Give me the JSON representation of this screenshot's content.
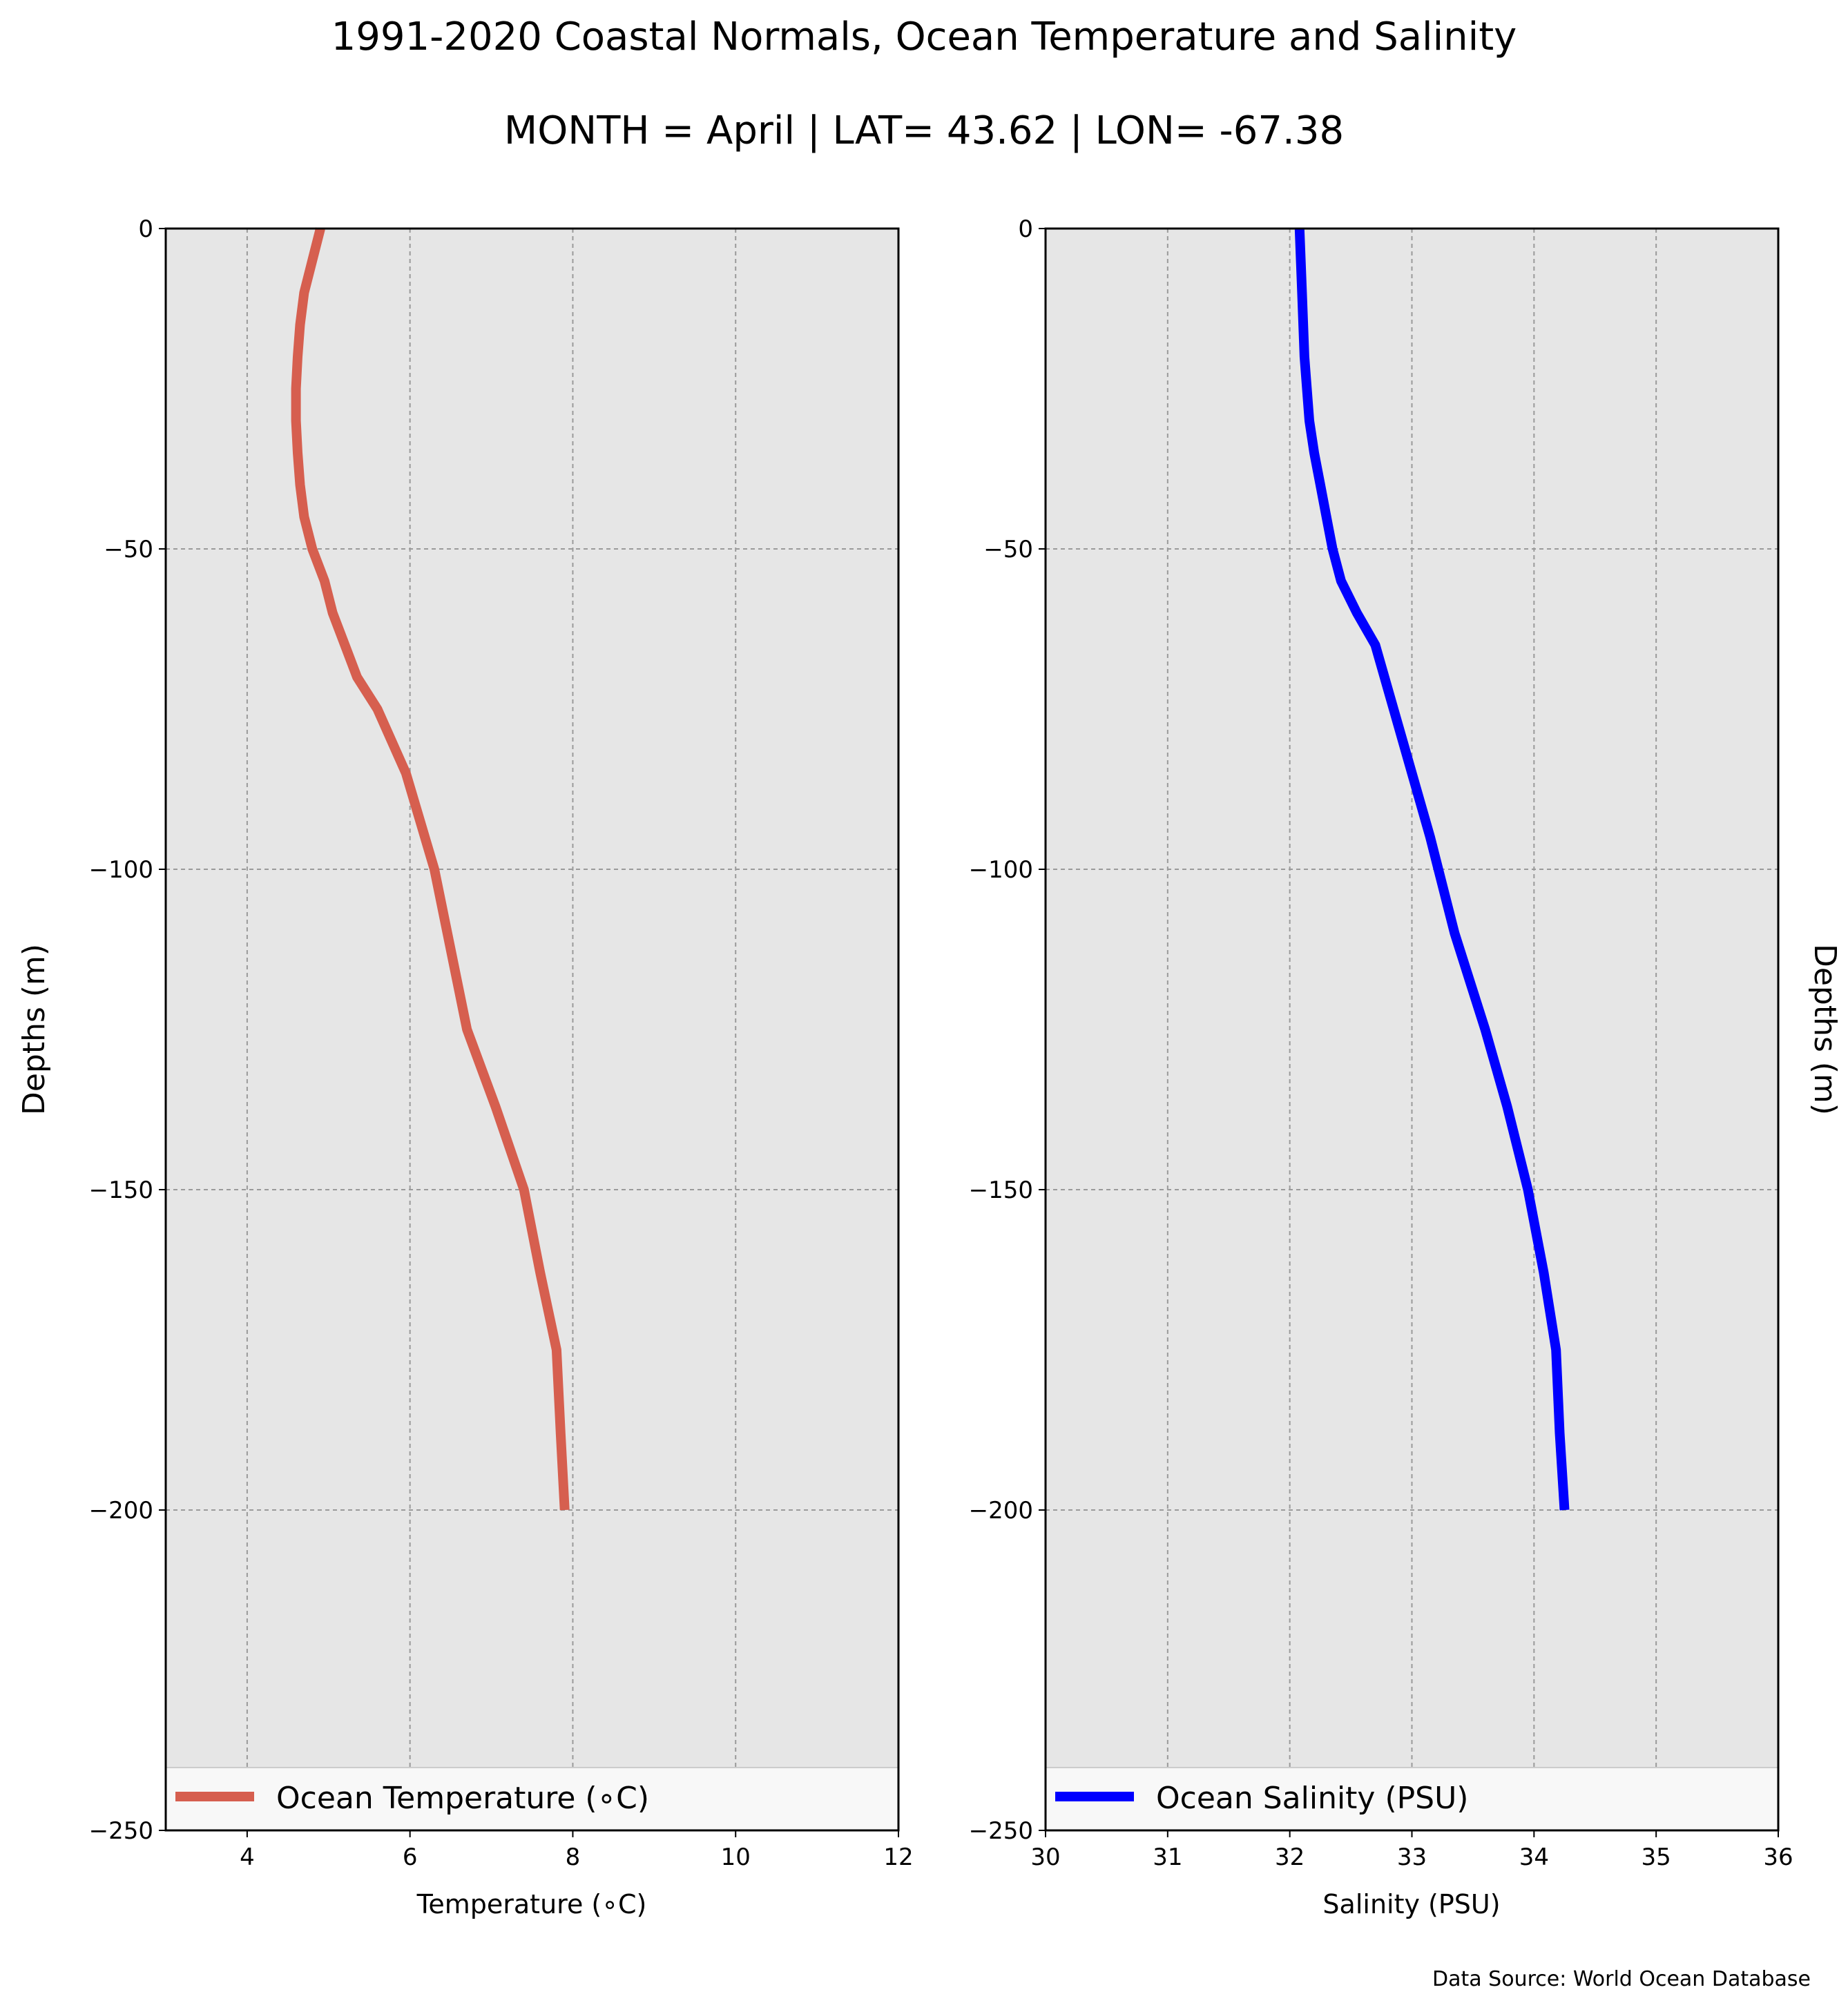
{
  "figure": {
    "title": "1991-2020 Coastal Normals, Ocean Temperature and Salinity",
    "subtitle": "MONTH = April | LAT= 43.62 | LON= -67.38",
    "source_note": "Data Source: World Ocean Database"
  },
  "chart_data": [
    {
      "type": "line",
      "xlabel": "Temperature ($^\\circ$C)",
      "xlabel_display": "Temperature (∘C)",
      "ylabel": "Depths (m)",
      "xlim": [
        3,
        12
      ],
      "ylim": [
        -250,
        0
      ],
      "xticks": [
        "4",
        "6",
        "8",
        "10",
        "12"
      ],
      "xtick_values": [
        4,
        6,
        8,
        10,
        12
      ],
      "yticks": [
        "0",
        "−50",
        "−100",
        "−150",
        "−200",
        "−250"
      ],
      "ytick_values": [
        0,
        -50,
        -100,
        -150,
        -200,
        -250
      ],
      "grid": true,
      "background": "#e6e6e6",
      "legend_position": "bottom",
      "series": [
        {
          "name": "Ocean Temperature (∘C)",
          "color": "#d65f4f",
          "x": [
            4.9,
            4.8,
            4.7,
            4.65,
            4.62,
            4.6,
            4.6,
            4.62,
            4.65,
            4.7,
            4.8,
            4.95,
            5.05,
            5.2,
            5.35,
            5.6,
            5.95,
            6.3,
            6.7,
            7.05,
            7.4,
            7.6,
            7.8,
            7.85,
            7.9
          ],
          "y": [
            0,
            -5,
            -10,
            -15,
            -20,
            -25,
            -30,
            -35,
            -40,
            -45,
            -50,
            -55,
            -60,
            -65,
            -70,
            -75,
            -85,
            -100,
            -125,
            -137,
            -150,
            -163,
            -175,
            -188,
            -200
          ]
        }
      ]
    },
    {
      "type": "line",
      "xlabel": "Salinity (PSU)",
      "ylabel": "Depths (m)",
      "xlim": [
        30,
        36
      ],
      "ylim": [
        -250,
        0
      ],
      "xticks": [
        "30",
        "31",
        "32",
        "33",
        "34",
        "35",
        "36"
      ],
      "xtick_values": [
        30,
        31,
        32,
        33,
        34,
        35,
        36
      ],
      "yticks": [
        "0",
        "−50",
        "−100",
        "−150",
        "−200",
        "−250"
      ],
      "ytick_values": [
        0,
        -50,
        -100,
        -150,
        -200,
        -250
      ],
      "grid": true,
      "background": "#e6e6e6",
      "legend_position": "bottom",
      "series": [
        {
          "name": "Ocean Salinity (PSU)",
          "color": "#0000ff",
          "x": [
            32.08,
            32.1,
            32.12,
            32.16,
            32.2,
            32.25,
            32.3,
            32.35,
            32.42,
            32.55,
            32.7,
            32.85,
            33.0,
            33.15,
            33.35,
            33.6,
            33.78,
            33.95,
            34.08,
            34.18,
            34.21,
            34.25
          ],
          "y": [
            0,
            -10,
            -20,
            -30,
            -35,
            -40,
            -45,
            -50,
            -55,
            -60,
            -65,
            -75,
            -85,
            -95,
            -110,
            -125,
            -137,
            -150,
            -163,
            -175,
            -188,
            -200
          ]
        }
      ]
    }
  ]
}
